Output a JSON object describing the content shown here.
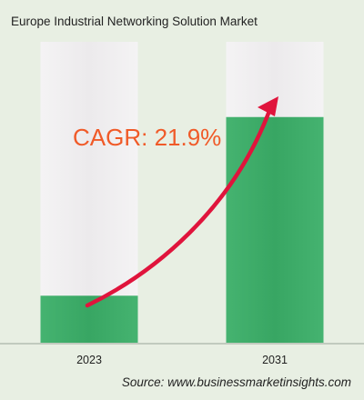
{
  "title": "Europe Industrial Networking Solution Market",
  "source": "Source: www.businessmarketinsights.com",
  "chart_data": {
    "type": "bar",
    "title": "Europe Industrial Networking Solution Market",
    "categories": [
      "2023",
      "2031"
    ],
    "values": [
      1.0,
      4.8
    ],
    "ylim": [
      0,
      6.4
    ],
    "annotation": "CAGR: 21.9%",
    "grid": false,
    "legend": "none"
  },
  "colors": {
    "background": "#e8efe3",
    "bar_fill": "#3aa865",
    "bar_track": "#ecebec",
    "arrow": "#e0143c",
    "annotation": "#f05a28"
  }
}
